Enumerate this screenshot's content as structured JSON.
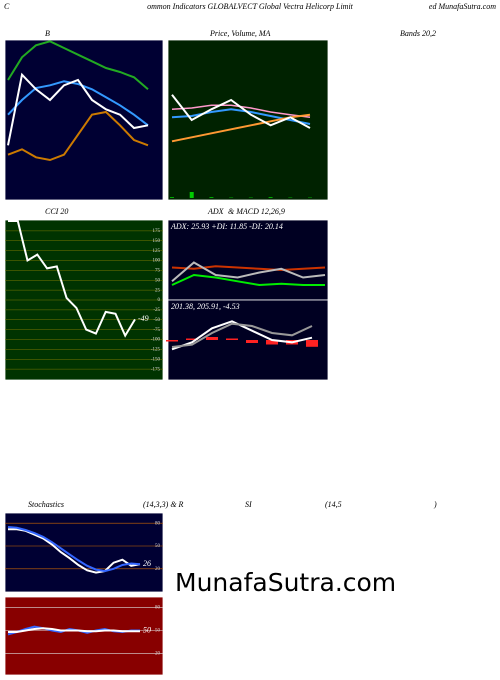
{
  "header": {
    "left": "C",
    "center": "ommon  Indicators GLOBALVECT Global Vectra  Helicorp Limit",
    "right": "ed MunafaSutra.com"
  },
  "titles": {
    "bollinger": "B",
    "price": "Price, Volume, MA",
    "bands": "Bands 20,2",
    "cci": "CCI 20",
    "adx": "ADX",
    "macd": "& MACD 12,26,9",
    "stoch": "Stochastics",
    "stoch_params": "(14,3,3) & R",
    "rsi": "SI",
    "rsi_params": "(14,5",
    "rsi_close": ")"
  },
  "watermark": "MunafaSutra.com",
  "panels": {
    "bollinger": {
      "ylim": [
        160,
        280
      ],
      "series": [
        {
          "color": "#22aa22",
          "values": [
            250,
            267,
            276,
            279,
            274,
            269,
            264,
            259,
            256,
            252,
            243
          ]
        },
        {
          "color": "#3399ff",
          "values": [
            224,
            235,
            244,
            246,
            249,
            247,
            243,
            237,
            231,
            224,
            216
          ]
        },
        {
          "color": "#cc7a00",
          "values": [
            194,
            198,
            192,
            190,
            194,
            209,
            224,
            226,
            216,
            205,
            201
          ]
        },
        {
          "color": "#ffffff",
          "values": [
            201,
            254,
            243,
            235,
            246,
            250,
            235,
            228,
            224,
            214,
            216
          ]
        }
      ]
    },
    "price": {
      "ylim": [
        160,
        280
      ],
      "series": [
        {
          "color": "#ff99cc",
          "values": [
            228,
            229,
            231,
            231,
            229,
            226,
            224,
            222
          ]
        },
        {
          "color": "#3399ff",
          "values": [
            222,
            223,
            226,
            228,
            226,
            223,
            220,
            217
          ]
        },
        {
          "color": "#ff9933",
          "values": [
            204,
            207,
            210,
            213,
            216,
            219,
            222,
            224
          ]
        },
        {
          "color": "#ffffff",
          "values": [
            239,
            220,
            228,
            235,
            224,
            216,
            222,
            214
          ]
        }
      ],
      "volume": {
        "color": "#00cc00",
        "ylim": [
          0,
          100
        ],
        "values": [
          2,
          15,
          2,
          1,
          1,
          2,
          1,
          1
        ]
      }
    },
    "cci": {
      "ylim": [
        -200,
        200
      ],
      "yticks": [
        175,
        150,
        125,
        100,
        75,
        50,
        25,
        0,
        -25,
        -50,
        -75,
        -100,
        -125,
        -150,
        -175
      ],
      "series": [
        {
          "color": "#ffffff",
          "values": [
            200,
            200,
            100,
            115,
            80,
            85,
            5,
            -20,
            -75,
            -85,
            -30,
            -35,
            -90,
            -49
          ]
        }
      ],
      "value_label": "-49"
    },
    "adx": {
      "ylim": [
        0,
        60
      ],
      "text": "ADX: 25.93 +DI: 11.85 -DI: 20.14",
      "series": [
        {
          "color": "#cc3300",
          "values": [
            26,
            25,
            27,
            26,
            25,
            24,
            25,
            26
          ]
        },
        {
          "color": "#00ee00",
          "values": [
            12,
            20,
            18,
            15,
            12,
            13,
            12,
            12
          ]
        },
        {
          "color": "#bbbbbb",
          "values": [
            15,
            30,
            20,
            18,
            22,
            25,
            18,
            20
          ]
        }
      ]
    },
    "macd": {
      "ylim": [
        185,
        215
      ],
      "text": "201.38, 205.91, -4.53",
      "series": [
        {
          "color": "#ffffff",
          "values": [
            196,
            199,
            205,
            208,
            204,
            200,
            199,
            201
          ]
        },
        {
          "color": "#999999",
          "values": [
            197,
            198,
            203,
            207,
            206,
            203,
            202,
            206
          ]
        }
      ],
      "histogram": {
        "color": "#ff2222",
        "ylim": [
          -10,
          10
        ],
        "values": [
          -1,
          1,
          2,
          1,
          -2,
          -3,
          -3,
          -4.53
        ]
      }
    },
    "stoch": {
      "ylim": [
        0,
        100
      ],
      "yticks": [
        80,
        50,
        20
      ],
      "series": [
        {
          "color": "#ffffff",
          "values": [
            72,
            72,
            70,
            65,
            60,
            52,
            42,
            34,
            25,
            18,
            15,
            17,
            28,
            32,
            24,
            26
          ]
        },
        {
          "color": "#3366ff",
          "values": [
            75,
            74,
            71,
            67,
            62,
            55,
            47,
            39,
            31,
            24,
            19,
            17,
            20,
            25,
            27,
            26
          ]
        }
      ],
      "value_label": "26"
    },
    "rsi": {
      "ylim": [
        0,
        100
      ],
      "yticks": [
        80,
        50,
        20
      ],
      "series": [
        {
          "color": "#3366ff",
          "values": [
            45,
            48,
            52,
            55,
            53,
            50,
            48,
            52,
            50,
            47,
            50,
            52,
            49,
            48,
            50,
            50
          ]
        },
        {
          "color": "#ffffff",
          "values": [
            48,
            48,
            50,
            52,
            53,
            52,
            50,
            50,
            50,
            49,
            49,
            50,
            50,
            49,
            49,
            49
          ]
        }
      ],
      "value_label": "50"
    }
  }
}
